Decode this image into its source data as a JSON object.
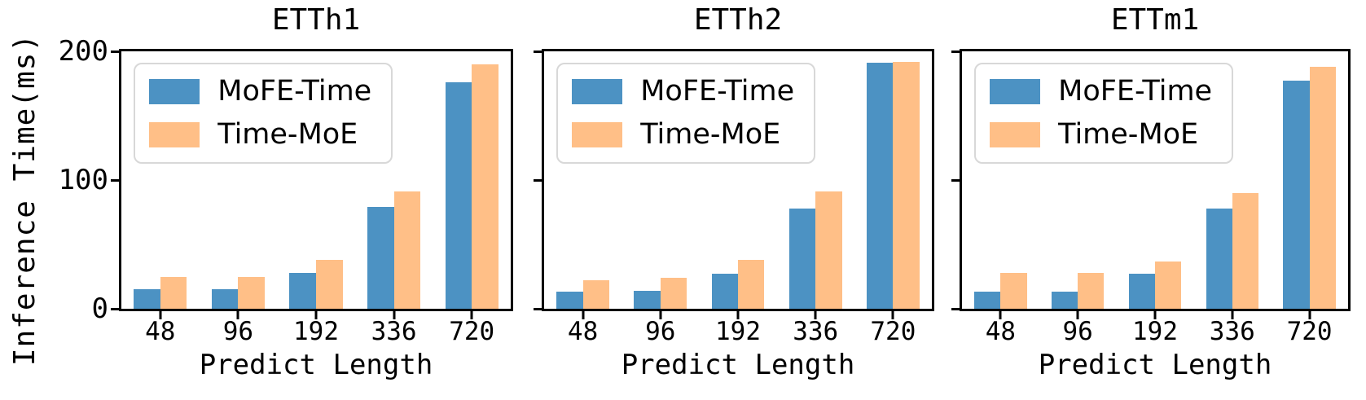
{
  "figure": {
    "ylabel": "Inference Time(ms)",
    "background": "#ffffff",
    "spine_color": "#000000",
    "legend_border_color": "#d8d8d8",
    "series_colors": {
      "mofe_time": "#4C92C3",
      "time_moe": "#FFBF87"
    }
  },
  "chart_data": [
    {
      "type": "bar",
      "title": "ETTh1",
      "xlabel": "Predict Length",
      "ylabel": "Inference Time(ms)",
      "categories": [
        "48",
        "96",
        "192",
        "336",
        "720"
      ],
      "series": [
        {
          "name": "MoFE-Time",
          "color": "#4C92C3",
          "values": [
            15,
            15,
            28,
            79,
            176
          ]
        },
        {
          "name": "Time-MoE",
          "color": "#FFBF87",
          "values": [
            25,
            25,
            38,
            91,
            190
          ]
        }
      ],
      "ylim": [
        0,
        200
      ],
      "yticks": [
        0,
        100,
        200
      ],
      "ytick_labels": [
        "0",
        "100",
        "200"
      ],
      "legend_position": "upper left",
      "grid": false
    },
    {
      "type": "bar",
      "title": "ETTh2",
      "xlabel": "Predict Length",
      "ylabel": "",
      "categories": [
        "48",
        "96",
        "192",
        "336",
        "720"
      ],
      "series": [
        {
          "name": "MoFE-Time",
          "color": "#4C92C3",
          "values": [
            13,
            14,
            27,
            78,
            191
          ]
        },
        {
          "name": "Time-MoE",
          "color": "#FFBF87",
          "values": [
            22,
            24,
            38,
            91,
            192
          ]
        }
      ],
      "ylim": [
        0,
        200
      ],
      "yticks": [
        0,
        100,
        200
      ],
      "ytick_labels": [],
      "legend_position": "upper left",
      "grid": false
    },
    {
      "type": "bar",
      "title": "ETTm1",
      "xlabel": "Predict Length",
      "ylabel": "",
      "categories": [
        "48",
        "96",
        "192",
        "336",
        "720"
      ],
      "series": [
        {
          "name": "MoFE-Time",
          "color": "#4C92C3",
          "values": [
            13,
            13,
            27,
            78,
            177
          ]
        },
        {
          "name": "Time-MoE",
          "color": "#FFBF87",
          "values": [
            28,
            28,
            37,
            90,
            188
          ]
        }
      ],
      "ylim": [
        0,
        200
      ],
      "yticks": [
        0,
        100,
        200
      ],
      "ytick_labels": [],
      "legend_position": "upper left",
      "grid": false
    }
  ]
}
